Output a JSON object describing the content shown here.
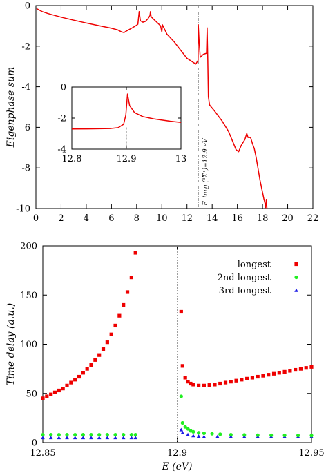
{
  "chart_data": [
    {
      "type": "line",
      "ylabel": "Eigenphase sum",
      "xlim": [
        0,
        22
      ],
      "ylim": [
        -10,
        0
      ],
      "xticks": [
        "0",
        "2",
        "4",
        "6",
        "8",
        "10",
        "12",
        "14",
        "16",
        "18",
        "20",
        "22"
      ],
      "yticks": [
        "0",
        "-2",
        "-4",
        "-6",
        "-8",
        "-10"
      ],
      "annotation": {
        "text": "E_targ (³Σ⁺)=12.9 eV",
        "x": 12.9
      },
      "series": [
        {
          "color": "#ee0000",
          "points": [
            [
              0.05,
              -0.15
            ],
            [
              0.5,
              -0.3
            ],
            [
              1.0,
              -0.4
            ],
            [
              2.0,
              -0.57
            ],
            [
              3.0,
              -0.72
            ],
            [
              4.0,
              -0.86
            ],
            [
              5.0,
              -0.99
            ],
            [
              6.0,
              -1.12
            ],
            [
              6.5,
              -1.2
            ],
            [
              6.8,
              -1.3
            ],
            [
              7.0,
              -1.33
            ],
            [
              7.2,
              -1.25
            ],
            [
              7.6,
              -1.12
            ],
            [
              8.0,
              -0.97
            ],
            [
              8.1,
              -0.92
            ],
            [
              8.2,
              -0.3
            ],
            [
              8.3,
              -0.75
            ],
            [
              8.5,
              -0.82
            ],
            [
              8.7,
              -0.78
            ],
            [
              8.9,
              -0.65
            ],
            [
              9.05,
              -0.5
            ],
            [
              9.1,
              -0.3
            ],
            [
              9.15,
              -0.55
            ],
            [
              9.4,
              -0.7
            ],
            [
              9.6,
              -0.82
            ],
            [
              9.9,
              -1.0
            ],
            [
              10.0,
              -1.3
            ],
            [
              10.05,
              -0.95
            ],
            [
              10.4,
              -1.4
            ],
            [
              11.0,
              -1.8
            ],
            [
              11.5,
              -2.2
            ],
            [
              12.0,
              -2.6
            ],
            [
              12.7,
              -2.88
            ],
            [
              12.88,
              -2.7
            ],
            [
              12.9,
              -0.95
            ],
            [
              12.96,
              -1.7
            ],
            [
              13.05,
              -2.55
            ],
            [
              13.3,
              -2.4
            ],
            [
              13.55,
              -2.35
            ],
            [
              13.6,
              -1.1
            ],
            [
              13.65,
              -2.6
            ],
            [
              13.7,
              -4.5
            ],
            [
              13.8,
              -4.9
            ],
            [
              14.2,
              -5.2
            ],
            [
              14.8,
              -5.7
            ],
            [
              15.3,
              -6.2
            ],
            [
              15.9,
              -7.1
            ],
            [
              16.1,
              -7.2
            ],
            [
              16.3,
              -6.9
            ],
            [
              16.6,
              -6.6
            ],
            [
              16.75,
              -6.3
            ],
            [
              16.85,
              -6.5
            ],
            [
              17.05,
              -6.5
            ],
            [
              17.2,
              -6.8
            ],
            [
              17.35,
              -7.05
            ],
            [
              17.5,
              -7.5
            ],
            [
              17.8,
              -8.6
            ],
            [
              18.1,
              -9.5
            ],
            [
              18.2,
              -9.75
            ],
            [
              18.25,
              -9.95
            ],
            [
              18.3,
              -9.55
            ],
            [
              18.35,
              -10.0
            ]
          ]
        }
      ]
    },
    {
      "type": "line",
      "xlim": [
        12.8,
        13.0
      ],
      "ylim": [
        -4,
        0
      ],
      "xticks": [
        "12.8",
        "12.9",
        "13"
      ],
      "yticks": [
        "0",
        "-2",
        "-4"
      ],
      "series": [
        {
          "color": "#ee0000",
          "points": [
            [
              12.8,
              -2.7
            ],
            [
              12.84,
              -2.69
            ],
            [
              12.87,
              -2.67
            ],
            [
              12.885,
              -2.62
            ],
            [
              12.895,
              -2.4
            ],
            [
              12.899,
              -1.8
            ],
            [
              12.902,
              -0.45
            ],
            [
              12.906,
              -1.2
            ],
            [
              12.915,
              -1.65
            ],
            [
              12.93,
              -1.9
            ],
            [
              12.95,
              -2.05
            ],
            [
              12.98,
              -2.2
            ],
            [
              13.0,
              -2.28
            ]
          ]
        }
      ]
    },
    {
      "type": "scatter",
      "xlabel": "E (eV)",
      "ylabel": "Time delay (a.u.)",
      "xlim": [
        12.85,
        12.95
      ],
      "ylim": [
        0,
        200
      ],
      "xticks": [
        "12.85",
        "12.9",
        "12.95"
      ],
      "yticks": [
        "0",
        "50",
        "100",
        "150",
        "200"
      ],
      "series": [
        {
          "name": "longest",
          "color": "#ee0000",
          "marker": "square",
          "x": [
            12.85,
            12.8515,
            12.853,
            12.8545,
            12.856,
            12.8575,
            12.859,
            12.8605,
            12.862,
            12.8635,
            12.865,
            12.8665,
            12.868,
            12.8695,
            12.871,
            12.8725,
            12.874,
            12.8755,
            12.877,
            12.8785,
            12.88,
            12.8815,
            12.883,
            12.8845,
            12.9015,
            12.902,
            12.903,
            12.904,
            12.905,
            12.906,
            12.908,
            12.91,
            12.912,
            12.914,
            12.916,
            12.918,
            12.92,
            12.922,
            12.924,
            12.926,
            12.928,
            12.93,
            12.932,
            12.934,
            12.936,
            12.938,
            12.94,
            12.942,
            12.944,
            12.946,
            12.948,
            12.95
          ],
          "y": [
            45,
            47,
            49,
            51,
            53,
            55,
            58,
            61,
            64,
            67,
            71,
            75,
            79,
            84,
            89,
            95,
            102,
            110,
            119,
            129,
            140,
            153,
            168,
            193,
            133,
            78,
            66,
            62,
            60,
            59,
            58,
            58,
            58.5,
            59,
            60,
            61,
            62,
            63,
            64,
            65,
            66,
            67,
            68,
            69,
            70,
            71,
            72,
            73,
            74,
            75,
            76,
            77
          ]
        },
        {
          "name": "2nd longest",
          "color": "#22ee22",
          "marker": "circle",
          "x": [
            12.85,
            12.853,
            12.856,
            12.859,
            12.862,
            12.865,
            12.868,
            12.871,
            12.874,
            12.877,
            12.88,
            12.883,
            12.8845,
            12.9015,
            12.902,
            12.903,
            12.904,
            12.905,
            12.906,
            12.908,
            12.91,
            12.913,
            12.916,
            12.92,
            12.925,
            12.93,
            12.935,
            12.94,
            12.945,
            12.95
          ],
          "y": [
            8,
            8,
            8,
            8,
            8,
            8,
            8,
            8,
            8,
            8,
            8,
            8,
            8,
            47,
            20,
            16,
            14,
            12,
            11,
            10,
            9.5,
            9,
            8.5,
            8,
            7.8,
            7.6,
            7.5,
            7.4,
            7.3,
            7.2
          ]
        },
        {
          "name": "3rd longest",
          "color": "#1a1ae6",
          "marker": "triangle",
          "x": [
            12.85,
            12.853,
            12.856,
            12.859,
            12.862,
            12.865,
            12.868,
            12.871,
            12.874,
            12.877,
            12.88,
            12.883,
            12.8845,
            12.9015,
            12.902,
            12.904,
            12.906,
            12.908,
            12.91,
            12.915,
            12.92,
            12.925,
            12.93,
            12.935,
            12.94,
            12.945,
            12.95
          ],
          "y": [
            5,
            5,
            5,
            5,
            5,
            5,
            5,
            5,
            5,
            5,
            5,
            5,
            5,
            13,
            10,
            8,
            7,
            6.5,
            6,
            6,
            6,
            6,
            6,
            6,
            6,
            6,
            6
          ]
        }
      ]
    }
  ]
}
